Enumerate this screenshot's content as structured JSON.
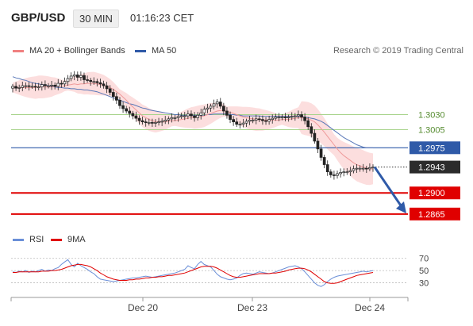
{
  "header": {
    "symbol": "GBP/USD",
    "timeframe": "30 MIN",
    "time": "01:16:23 CET"
  },
  "legend": {
    "items": [
      {
        "label": "MA 20 + Bollinger Bands",
        "color": "#f08080"
      },
      {
        "label": "MA 50",
        "color": "#2f5aa8"
      }
    ],
    "credit": "Research © 2019 Trading Central"
  },
  "rsi_legend": {
    "items": [
      {
        "label": "RSI",
        "color": "#6a8fd8"
      },
      {
        "label": "9MA",
        "color": "#e00000"
      }
    ]
  },
  "chart_data": [
    {
      "type": "candlestick",
      "title": "",
      "x_ticks": [
        "Dec 20",
        "Dec 23",
        "Dec 24"
      ],
      "y_range": [
        1.2845,
        1.3115
      ],
      "last_price": "1.2943",
      "levels": [
        {
          "value": 1.303,
          "label": "1.3030",
          "color": "#a7d38a",
          "style": "line"
        },
        {
          "value": 1.3005,
          "label": "1.3005",
          "color": "#a7d38a",
          "style": "line"
        },
        {
          "value": 1.2975,
          "label": "1.2975",
          "color": "#2f5aa8",
          "style": "box"
        },
        {
          "value": 1.29,
          "label": "1.2900",
          "color": "#e00000",
          "style": "box"
        },
        {
          "value": 1.2865,
          "label": "1.2865",
          "color": "#e00000",
          "style": "box"
        }
      ],
      "forecast": {
        "from": 1.2943,
        "to": 1.2866
      },
      "close": [
        1.3077,
        1.3074,
        1.3075,
        1.3078,
        1.3078,
        1.3077,
        1.3077,
        1.3076,
        1.3076,
        1.308,
        1.3078,
        1.3078,
        1.3079,
        1.3077,
        1.3082,
        1.3081,
        1.3085,
        1.309,
        1.3094,
        1.3096,
        1.3092,
        1.3095,
        1.3088,
        1.3087,
        1.3085,
        1.3085,
        1.3083,
        1.3081,
        1.3078,
        1.3073,
        1.3067,
        1.306,
        1.3054,
        1.3045,
        1.304,
        1.3036,
        1.3032,
        1.3028,
        1.3024,
        1.302,
        1.3018,
        1.3017,
        1.3017,
        1.3016,
        1.3017,
        1.3018,
        1.3019,
        1.3021,
        1.3023,
        1.3025,
        1.3025,
        1.3027,
        1.3028,
        1.3028,
        1.3031,
        1.3028,
        1.3025,
        1.3029,
        1.3033,
        1.3039,
        1.3041,
        1.3044,
        1.3048,
        1.3051,
        1.3044,
        1.3036,
        1.3029,
        1.3022,
        1.3018,
        1.3014,
        1.3014,
        1.3016,
        1.3019,
        1.3021,
        1.3021,
        1.3023,
        1.3022,
        1.302,
        1.3019,
        1.3022,
        1.3024,
        1.3026,
        1.3026,
        1.3026,
        1.3025,
        1.3026,
        1.3027,
        1.3028,
        1.303,
        1.3026,
        1.302,
        1.301,
        1.2999,
        1.2986,
        1.2973,
        1.2959,
        1.2947,
        1.2935,
        1.293,
        1.2929,
        1.2932,
        1.2934,
        1.2935,
        1.2935,
        1.2937,
        1.294,
        1.2941,
        1.2941,
        1.2941,
        1.294,
        1.2942,
        1.2943
      ],
      "ma20": [
        1.3075,
        1.3075,
        1.3075,
        1.3075,
        1.3075,
        1.3075,
        1.3075,
        1.3075,
        1.3076,
        1.3076,
        1.3076,
        1.3076,
        1.3076,
        1.3077,
        1.3077,
        1.3077,
        1.3078,
        1.3079,
        1.308,
        1.3081,
        1.308,
        1.3081,
        1.3081,
        1.3082,
        1.3082,
        1.3082,
        1.3081,
        1.308,
        1.3079,
        1.3077,
        1.3075,
        1.3072,
        1.3068,
        1.3064,
        1.3059,
        1.3054,
        1.3048,
        1.3043,
        1.3038,
        1.3033,
        1.3028,
        1.3025,
        1.3022,
        1.302,
        1.3018,
        1.3018,
        1.3018,
        1.3018,
        1.3019,
        1.302,
        1.302,
        1.3021,
        1.3022,
        1.3023,
        1.3024,
        1.3025,
        1.3025,
        1.3026,
        1.3027,
        1.3028,
        1.303,
        1.3032,
        1.3034,
        1.3036,
        1.3037,
        1.3037,
        1.3035,
        1.3034,
        1.3032,
        1.303,
        1.3028,
        1.3026,
        1.3025,
        1.3024,
        1.3023,
        1.3022,
        1.3022,
        1.3021,
        1.3021,
        1.3021,
        1.3021,
        1.3021,
        1.3021,
        1.3022,
        1.3022,
        1.3022,
        1.3023,
        1.3024,
        1.3025,
        1.3025,
        1.3024,
        1.3023,
        1.3021,
        1.3018,
        1.3013,
        1.3007,
        1.3001,
        1.2994,
        1.2987,
        1.298,
        1.2973,
        1.2967,
        1.2962,
        1.2958,
        1.2954,
        1.295,
        1.2947,
        1.2945,
        1.2943,
        1.2941,
        1.294,
        1.294
      ],
      "ma50": [
        1.3093,
        1.3091,
        1.309,
        1.3088,
        1.3087,
        1.3085,
        1.3083,
        1.3082,
        1.3081,
        1.308,
        1.3079,
        1.3078,
        1.3077,
        1.3076,
        1.3075,
        1.3075,
        1.3074,
        1.3074,
        1.3073,
        1.3073,
        1.3072,
        1.3072,
        1.3071,
        1.3071,
        1.307,
        1.3069,
        1.3068,
        1.3066,
        1.3064,
        1.3062,
        1.306,
        1.3058,
        1.3056,
        1.3054,
        1.3052,
        1.305,
        1.3048,
        1.3047,
        1.3045,
        1.3043,
        1.3041,
        1.304,
        1.3038,
        1.3037,
        1.3036,
        1.3035,
        1.3034,
        1.3033,
        1.3032,
        1.3031,
        1.303,
        1.303,
        1.3029,
        1.3029,
        1.3029,
        1.3029,
        1.3029,
        1.3029,
        1.3029,
        1.3029,
        1.303,
        1.303,
        1.3031,
        1.3031,
        1.3031,
        1.3031,
        1.3031,
        1.303,
        1.303,
        1.3029,
        1.3029,
        1.3028,
        1.3028,
        1.3028,
        1.3028,
        1.3028,
        1.3028,
        1.3027,
        1.3027,
        1.3027,
        1.3027,
        1.3027,
        1.3027,
        1.3027,
        1.3027,
        1.3027,
        1.3027,
        1.3027,
        1.3027,
        1.3027,
        1.3026,
        1.3025,
        1.3024,
        1.3023,
        1.3021,
        1.3019,
        1.3016,
        1.3012,
        1.3008,
        1.3004,
        1.3,
        1.2996,
        1.2992,
        1.2989,
        1.2986,
        1.2983,
        1.298,
        1.2978,
        1.2976,
        1.2975,
        1.2975,
        1.2975
      ]
    },
    {
      "type": "line",
      "title": "RSI",
      "y_ticks": [
        70,
        50,
        30
      ],
      "y_range": [
        10,
        80
      ],
      "rsi": [
        48,
        47,
        49,
        48,
        50,
        47,
        49,
        48,
        50,
        52,
        49,
        51,
        50,
        53,
        55,
        60,
        64,
        68,
        60,
        56,
        62,
        58,
        55,
        52,
        48,
        45,
        40,
        36,
        35,
        34,
        33,
        32,
        33,
        34,
        35,
        36,
        37,
        38,
        38,
        39,
        40,
        41,
        40,
        39,
        40,
        41,
        42,
        43,
        44,
        45,
        46,
        48,
        50,
        52,
        58,
        55,
        53,
        60,
        65,
        60,
        58,
        56,
        50,
        44,
        40,
        38,
        36,
        35,
        36,
        38,
        42,
        45,
        46,
        45,
        44,
        46,
        48,
        47,
        46,
        45,
        46,
        48,
        50,
        52,
        54,
        56,
        57,
        58,
        56,
        53,
        48,
        42,
        36,
        30,
        26,
        24,
        27,
        32,
        36,
        39,
        41,
        42,
        43,
        44,
        45,
        46,
        47,
        48,
        49,
        48,
        49,
        50
      ],
      "ma9": [
        47,
        47,
        48,
        48,
        48,
        48,
        48,
        48,
        48,
        49,
        49,
        49,
        50,
        50,
        51,
        52,
        54,
        56,
        58,
        59,
        60,
        60,
        59,
        58,
        56,
        53,
        50,
        46,
        43,
        40,
        38,
        36,
        35,
        34,
        34,
        34,
        35,
        35,
        36,
        36,
        37,
        38,
        38,
        39,
        39,
        40,
        40,
        41,
        42,
        42,
        43,
        44,
        45,
        46,
        48,
        50,
        52,
        54,
        56,
        57,
        57,
        57,
        56,
        54,
        51,
        48,
        45,
        42,
        40,
        39,
        39,
        40,
        41,
        42,
        43,
        44,
        45,
        45,
        45,
        45,
        46,
        46,
        47,
        48,
        49,
        51,
        52,
        53,
        54,
        54,
        53,
        51,
        48,
        44,
        40,
        36,
        32,
        30,
        29,
        29,
        30,
        32,
        34,
        36,
        38,
        40,
        42,
        43,
        44,
        45,
        46,
        47
      ]
    }
  ]
}
